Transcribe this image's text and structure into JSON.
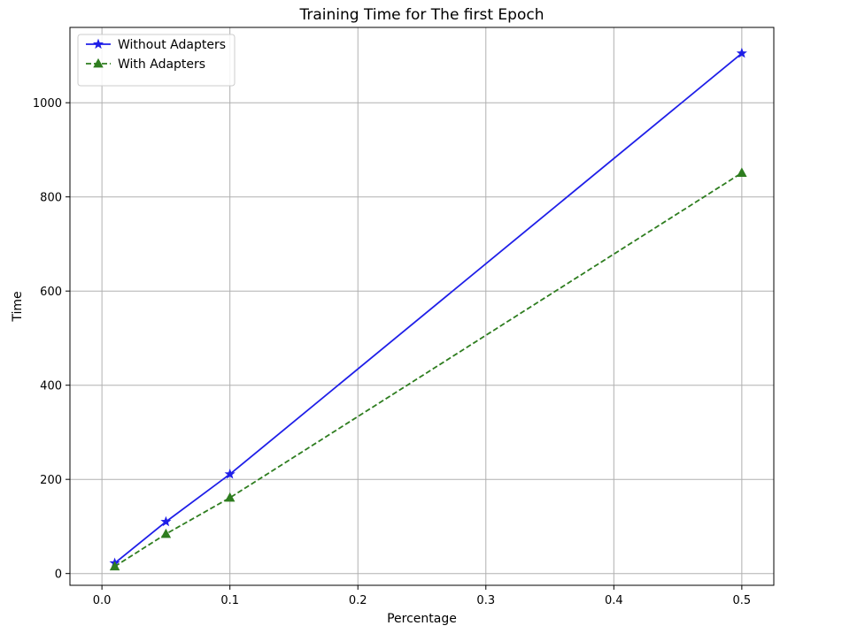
{
  "chart_data": {
    "type": "line",
    "title": "Training Time for The first Epoch",
    "xlabel": "Percentage",
    "ylabel": "Time",
    "xlim": [
      -0.025,
      0.525
    ],
    "ylim": [
      -25,
      1160
    ],
    "xticks": [
      0.0,
      0.1,
      0.2,
      0.3,
      0.4,
      0.5
    ],
    "xtick_labels": [
      "0.0",
      "0.1",
      "0.2",
      "0.3",
      "0.4",
      "0.5"
    ],
    "yticks": [
      0,
      200,
      400,
      600,
      800,
      1000
    ],
    "ytick_labels": [
      "0",
      "200",
      "400",
      "600",
      "800",
      "1000"
    ],
    "grid": true,
    "legend_position": "top-left",
    "x": [
      0.01,
      0.05,
      0.1,
      0.5
    ],
    "series": [
      {
        "name": "Without Adapters",
        "values": [
          22,
          110,
          211,
          1105
        ],
        "color": "#1f1fe8",
        "line_style": "solid",
        "marker": "star"
      },
      {
        "name": "With Adapters",
        "values": [
          15,
          84,
          161,
          851
        ],
        "color": "#2e7d1f",
        "line_style": "dashed",
        "marker": "triangle"
      }
    ]
  }
}
